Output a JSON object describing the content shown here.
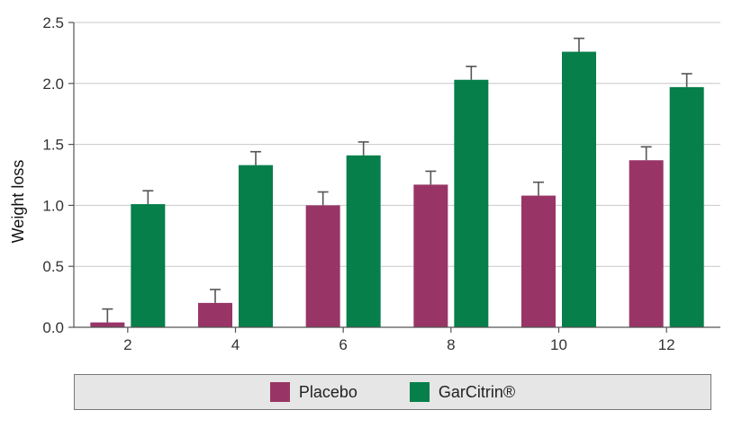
{
  "chart_data": {
    "type": "bar",
    "categories": [
      "2",
      "4",
      "6",
      "8",
      "10",
      "12"
    ],
    "series": [
      {
        "name": "Placebo",
        "color": "#983566",
        "values": [
          0.04,
          0.2,
          1.0,
          1.17,
          1.08,
          1.37
        ],
        "errors": [
          0.11,
          0.11,
          0.11,
          0.11,
          0.11,
          0.11
        ]
      },
      {
        "name": "GarCitrin®",
        "color": "#067f4a",
        "values": [
          1.01,
          1.33,
          1.41,
          2.03,
          2.26,
          1.97
        ],
        "errors": [
          0.11,
          0.11,
          0.11,
          0.11,
          0.11,
          0.11
        ]
      }
    ],
    "ylabel": "Weight loss",
    "xlabel": "",
    "ylim": [
      0,
      2.5
    ],
    "yticks": [
      "0.0",
      "0.5",
      "1.0",
      "1.5",
      "2.0",
      "2.5"
    ],
    "grid": true,
    "legend": "bottom"
  }
}
